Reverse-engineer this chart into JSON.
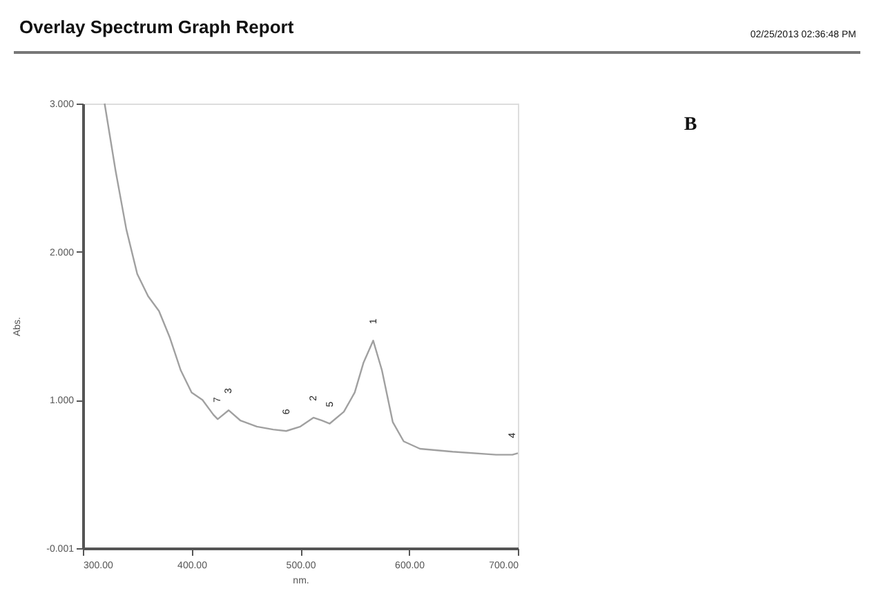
{
  "chart_data": {
    "type": "line",
    "title": "Overlay Spectrum Graph Report",
    "xlabel": "nm.",
    "ylabel": "Abs.",
    "x": [
      320,
      330,
      340,
      350,
      360,
      370,
      380,
      390,
      400,
      410,
      420,
      424,
      434,
      445,
      460,
      475,
      487,
      500,
      512,
      520,
      527,
      540,
      550,
      558,
      567,
      575,
      585,
      595,
      610,
      640,
      680,
      695,
      700
    ],
    "series": [
      {
        "color": "#a0a0a0",
        "values": [
          3.0,
          2.55,
          2.15,
          1.85,
          1.7,
          1.6,
          1.42,
          1.2,
          1.05,
          1.0,
          0.9,
          0.87,
          0.93,
          0.86,
          0.82,
          0.8,
          0.79,
          0.82,
          0.88,
          0.86,
          0.84,
          0.92,
          1.05,
          1.25,
          1.4,
          1.2,
          0.85,
          0.72,
          0.67,
          0.65,
          0.63,
          0.63,
          0.64
        ]
      }
    ],
    "xlim": [
      300,
      700
    ],
    "ylim": [
      -0.001,
      3.0
    ],
    "xticks": [
      {
        "value": 300,
        "label": "300.00"
      },
      {
        "value": 400,
        "label": "400.00"
      },
      {
        "value": 500,
        "label": "500.00"
      },
      {
        "value": 600,
        "label": "600.00"
      },
      {
        "value": 700,
        "label": "700.00"
      }
    ],
    "yticks": [
      {
        "value": -0.001,
        "label": "-0.001"
      },
      {
        "value": 1.0,
        "label": "1.000"
      },
      {
        "value": 2.0,
        "label": "2.000"
      },
      {
        "value": 3.0,
        "label": "3.000"
      }
    ],
    "grid": false,
    "marker": "none",
    "line_style": "solid",
    "annotations": [
      "02/25/2013  02:36:48 PM",
      "B",
      {
        "text": "1",
        "x": 567,
        "y": 1.4
      },
      {
        "text": "2",
        "x": 512,
        "y": 0.88
      },
      {
        "text": "3",
        "x": 434,
        "y": 0.93
      },
      {
        "text": "4",
        "x": 695,
        "y": 0.63
      },
      {
        "text": "5",
        "x": 527,
        "y": 0.84
      },
      {
        "text": "6",
        "x": 487,
        "y": 0.79
      },
      {
        "text": "7",
        "x": 424,
        "y": 0.87
      }
    ]
  }
}
